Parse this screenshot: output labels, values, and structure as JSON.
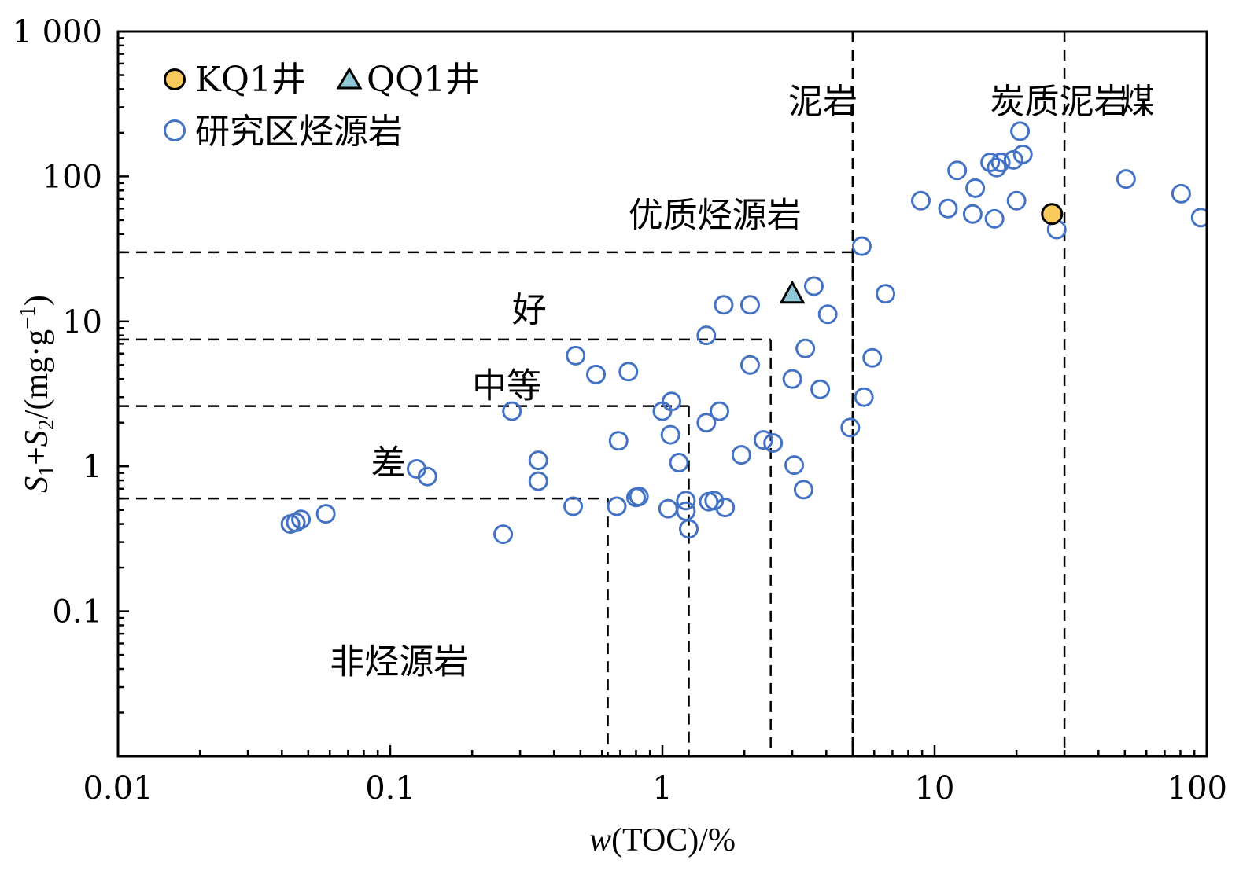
{
  "chart_data": {
    "type": "scatter",
    "xscale": "log",
    "yscale": "log",
    "xlim": [
      0.01,
      100
    ],
    "ylim": [
      0.01,
      1000
    ],
    "xlabel": "w(TOC)/%",
    "ylabel": "S1+S2/(mg·g−1)",
    "x_ticks": [
      {
        "value": 0.01,
        "label": "0.01"
      },
      {
        "value": 0.1,
        "label": "0.1"
      },
      {
        "value": 1,
        "label": "1"
      },
      {
        "value": 10,
        "label": "10"
      },
      {
        "value": 100,
        "label": "100"
      }
    ],
    "y_ticks": [
      {
        "value": 0.1,
        "label": "0.1"
      },
      {
        "value": 1,
        "label": "1"
      },
      {
        "value": 10,
        "label": "10"
      },
      {
        "value": 100,
        "label": "100"
      },
      {
        "value": 1000,
        "label": "1 000"
      }
    ],
    "legend": {
      "position": "top-left",
      "entries": [
        {
          "label": "KQ1井",
          "marker": "circle-filled",
          "color": "#F9CB5C"
        },
        {
          "label": "QQ1井",
          "marker": "triangle",
          "color": "#8FC7D6"
        },
        {
          "label": "研究区烃源岩",
          "marker": "circle-open",
          "color": "#4472C4"
        }
      ]
    },
    "boundaries": {
      "vertical_full": [
        5,
        30
      ],
      "steps": [
        {
          "y": 30,
          "x_max": 5
        },
        {
          "y": 7.5,
          "x_max": 2.5
        },
        {
          "y": 2.6,
          "x_max": 1.25
        },
        {
          "y": 0.6,
          "x_max": 0.63
        }
      ]
    },
    "region_labels": [
      {
        "text": "泥岩",
        "x": 2.9,
        "y": 330
      },
      {
        "text": "炭质泥岩",
        "x": 16,
        "y": 330
      },
      {
        "text": "煤",
        "x": 48,
        "y": 330
      },
      {
        "text": "优质烃源岩",
        "x": 0.75,
        "y": 54
      },
      {
        "text": "好",
        "x": 0.28,
        "y": 12
      },
      {
        "text": "中等",
        "x": 0.2,
        "y": 3.6
      },
      {
        "text": "差",
        "x": 0.085,
        "y": 1.06
      },
      {
        "text": "非烃源岩",
        "x": 0.06,
        "y": 0.045
      }
    ],
    "series": [
      {
        "name": "KQ1井",
        "color": "#F9CB5C",
        "points": [
          [
            27,
            55
          ]
        ]
      },
      {
        "name": "QQ1井",
        "color": "#8FC7D6",
        "points": [
          [
            3.0,
            15.5
          ]
        ]
      },
      {
        "name": "研究区烃源岩",
        "color": "#4472C4",
        "points": [
          [
            0.043,
            0.4
          ],
          [
            0.045,
            0.41
          ],
          [
            0.047,
            0.43
          ],
          [
            0.058,
            0.47
          ],
          [
            0.125,
            0.96
          ],
          [
            0.137,
            0.85
          ],
          [
            0.26,
            0.34
          ],
          [
            0.28,
            2.4
          ],
          [
            0.35,
            1.1
          ],
          [
            0.35,
            0.79
          ],
          [
            0.47,
            0.53
          ],
          [
            0.48,
            5.8
          ],
          [
            0.57,
            4.3
          ],
          [
            0.68,
            0.53
          ],
          [
            0.69,
            1.5
          ],
          [
            0.75,
            4.5
          ],
          [
            0.8,
            0.61
          ],
          [
            0.82,
            0.62
          ],
          [
            1.0,
            2.4
          ],
          [
            1.05,
            0.51
          ],
          [
            1.07,
            1.65
          ],
          [
            1.08,
            2.8
          ],
          [
            1.15,
            1.06
          ],
          [
            1.22,
            0.58
          ],
          [
            1.22,
            0.49
          ],
          [
            1.25,
            0.37
          ],
          [
            1.45,
            8.0
          ],
          [
            1.45,
            2.0
          ],
          [
            1.48,
            0.57
          ],
          [
            1.55,
            0.58
          ],
          [
            1.62,
            2.4
          ],
          [
            1.68,
            13
          ],
          [
            1.7,
            0.52
          ],
          [
            1.95,
            1.2
          ],
          [
            2.1,
            13
          ],
          [
            2.1,
            5.0
          ],
          [
            2.35,
            1.52
          ],
          [
            2.55,
            1.45
          ],
          [
            3.0,
            4.0
          ],
          [
            3.05,
            1.02
          ],
          [
            3.3,
            0.69
          ],
          [
            3.35,
            6.5
          ],
          [
            3.6,
            17.5
          ],
          [
            3.8,
            3.4
          ],
          [
            4.05,
            11.2
          ],
          [
            4.9,
            1.85
          ],
          [
            5.4,
            33
          ],
          [
            5.5,
            3.0
          ],
          [
            5.9,
            5.6
          ],
          [
            6.6,
            15.5
          ],
          [
            8.9,
            68
          ],
          [
            11.2,
            60
          ],
          [
            12.1,
            110
          ],
          [
            13.8,
            55
          ],
          [
            14.1,
            83
          ],
          [
            16.0,
            125
          ],
          [
            16.6,
            51
          ],
          [
            16.9,
            115
          ],
          [
            17.5,
            125
          ],
          [
            19.5,
            130
          ],
          [
            20.0,
            68
          ],
          [
            20.6,
            205
          ],
          [
            21.1,
            142
          ],
          [
            28.1,
            43
          ],
          [
            50.5,
            96
          ],
          [
            80.5,
            76
          ],
          [
            95,
            52
          ]
        ]
      }
    ]
  }
}
